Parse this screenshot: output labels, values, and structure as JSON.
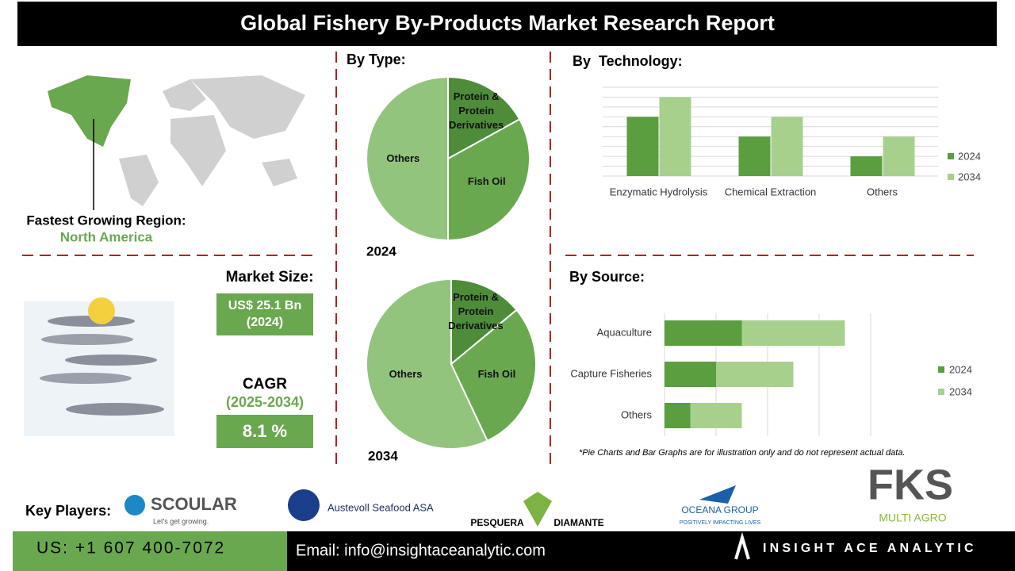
{
  "header": {
    "title": "Global Fishery By-Products Market Research Report"
  },
  "region": {
    "label": "Fastest Growing Region:",
    "value": "North America"
  },
  "market_size": {
    "label": "Market Size:",
    "value": "US$ 25.1 Bn (2024)"
  },
  "cagr": {
    "label": "CAGR",
    "period": "(2025-2034)",
    "value": "8.1 %"
  },
  "type_heading": "By Type:",
  "chart_data": [
    {
      "type": "pie",
      "title": "2024",
      "categories": [
        "Protein & Protein Derivatives",
        "Fish Oil",
        "Others"
      ],
      "values": [
        17,
        33,
        50
      ],
      "colors": [
        "#4e8c3a",
        "#6aa84f",
        "#93c47d"
      ]
    },
    {
      "type": "pie",
      "title": "2034",
      "categories": [
        "Protein & Protein Derivatives",
        "Fish Oil",
        "Others"
      ],
      "values": [
        14,
        29,
        57
      ],
      "colors": [
        "#4e8c3a",
        "#6aa84f",
        "#93c47d"
      ]
    },
    {
      "type": "bar",
      "title": "By  Technology:",
      "categories": [
        "Enzymatic Hydrolysis",
        "Chemical Extraction",
        "Others"
      ],
      "series": [
        {
          "name": "2024",
          "color": "#5a9e3f",
          "values": [
            6,
            4,
            2
          ]
        },
        {
          "name": "2034",
          "color": "#a8d08d",
          "values": [
            8,
            6,
            4
          ]
        }
      ],
      "ylim": [
        0,
        9
      ],
      "grid": true,
      "legend": "right"
    },
    {
      "type": "stacked-barh",
      "title": "By Source:",
      "categories": [
        "Aquaculture",
        "Capture Fisheries",
        "Others"
      ],
      "series": [
        {
          "name": "2024",
          "color": "#5a9e3f",
          "values": [
            1.5,
            1,
            0.5
          ]
        },
        {
          "name": "2034",
          "color": "#a8d08d",
          "values": [
            2,
            1.5,
            1
          ]
        }
      ],
      "xlim": [
        0,
        4
      ],
      "grid": true,
      "legend": "right"
    }
  ],
  "note": "*Pie Charts and Bar Graphs are for illustration only and do not represent actual data.",
  "key_players": {
    "label": "Key Players:",
    "logos": [
      "SCOULAR",
      "Let's get growing.",
      "Austevoll Seafood ASA",
      "PESQUERA",
      "DIAMANTE",
      "OCEANA GROUP",
      "POSITIVELY IMPACTING LIVES",
      "FKS",
      "MULTI AGRO"
    ]
  },
  "footer": {
    "phone": "US: +1 607 400-7072",
    "email": "Email: info@insightaceanalytic.com",
    "brand": "INSIGHT ACE ANALYTIC"
  }
}
